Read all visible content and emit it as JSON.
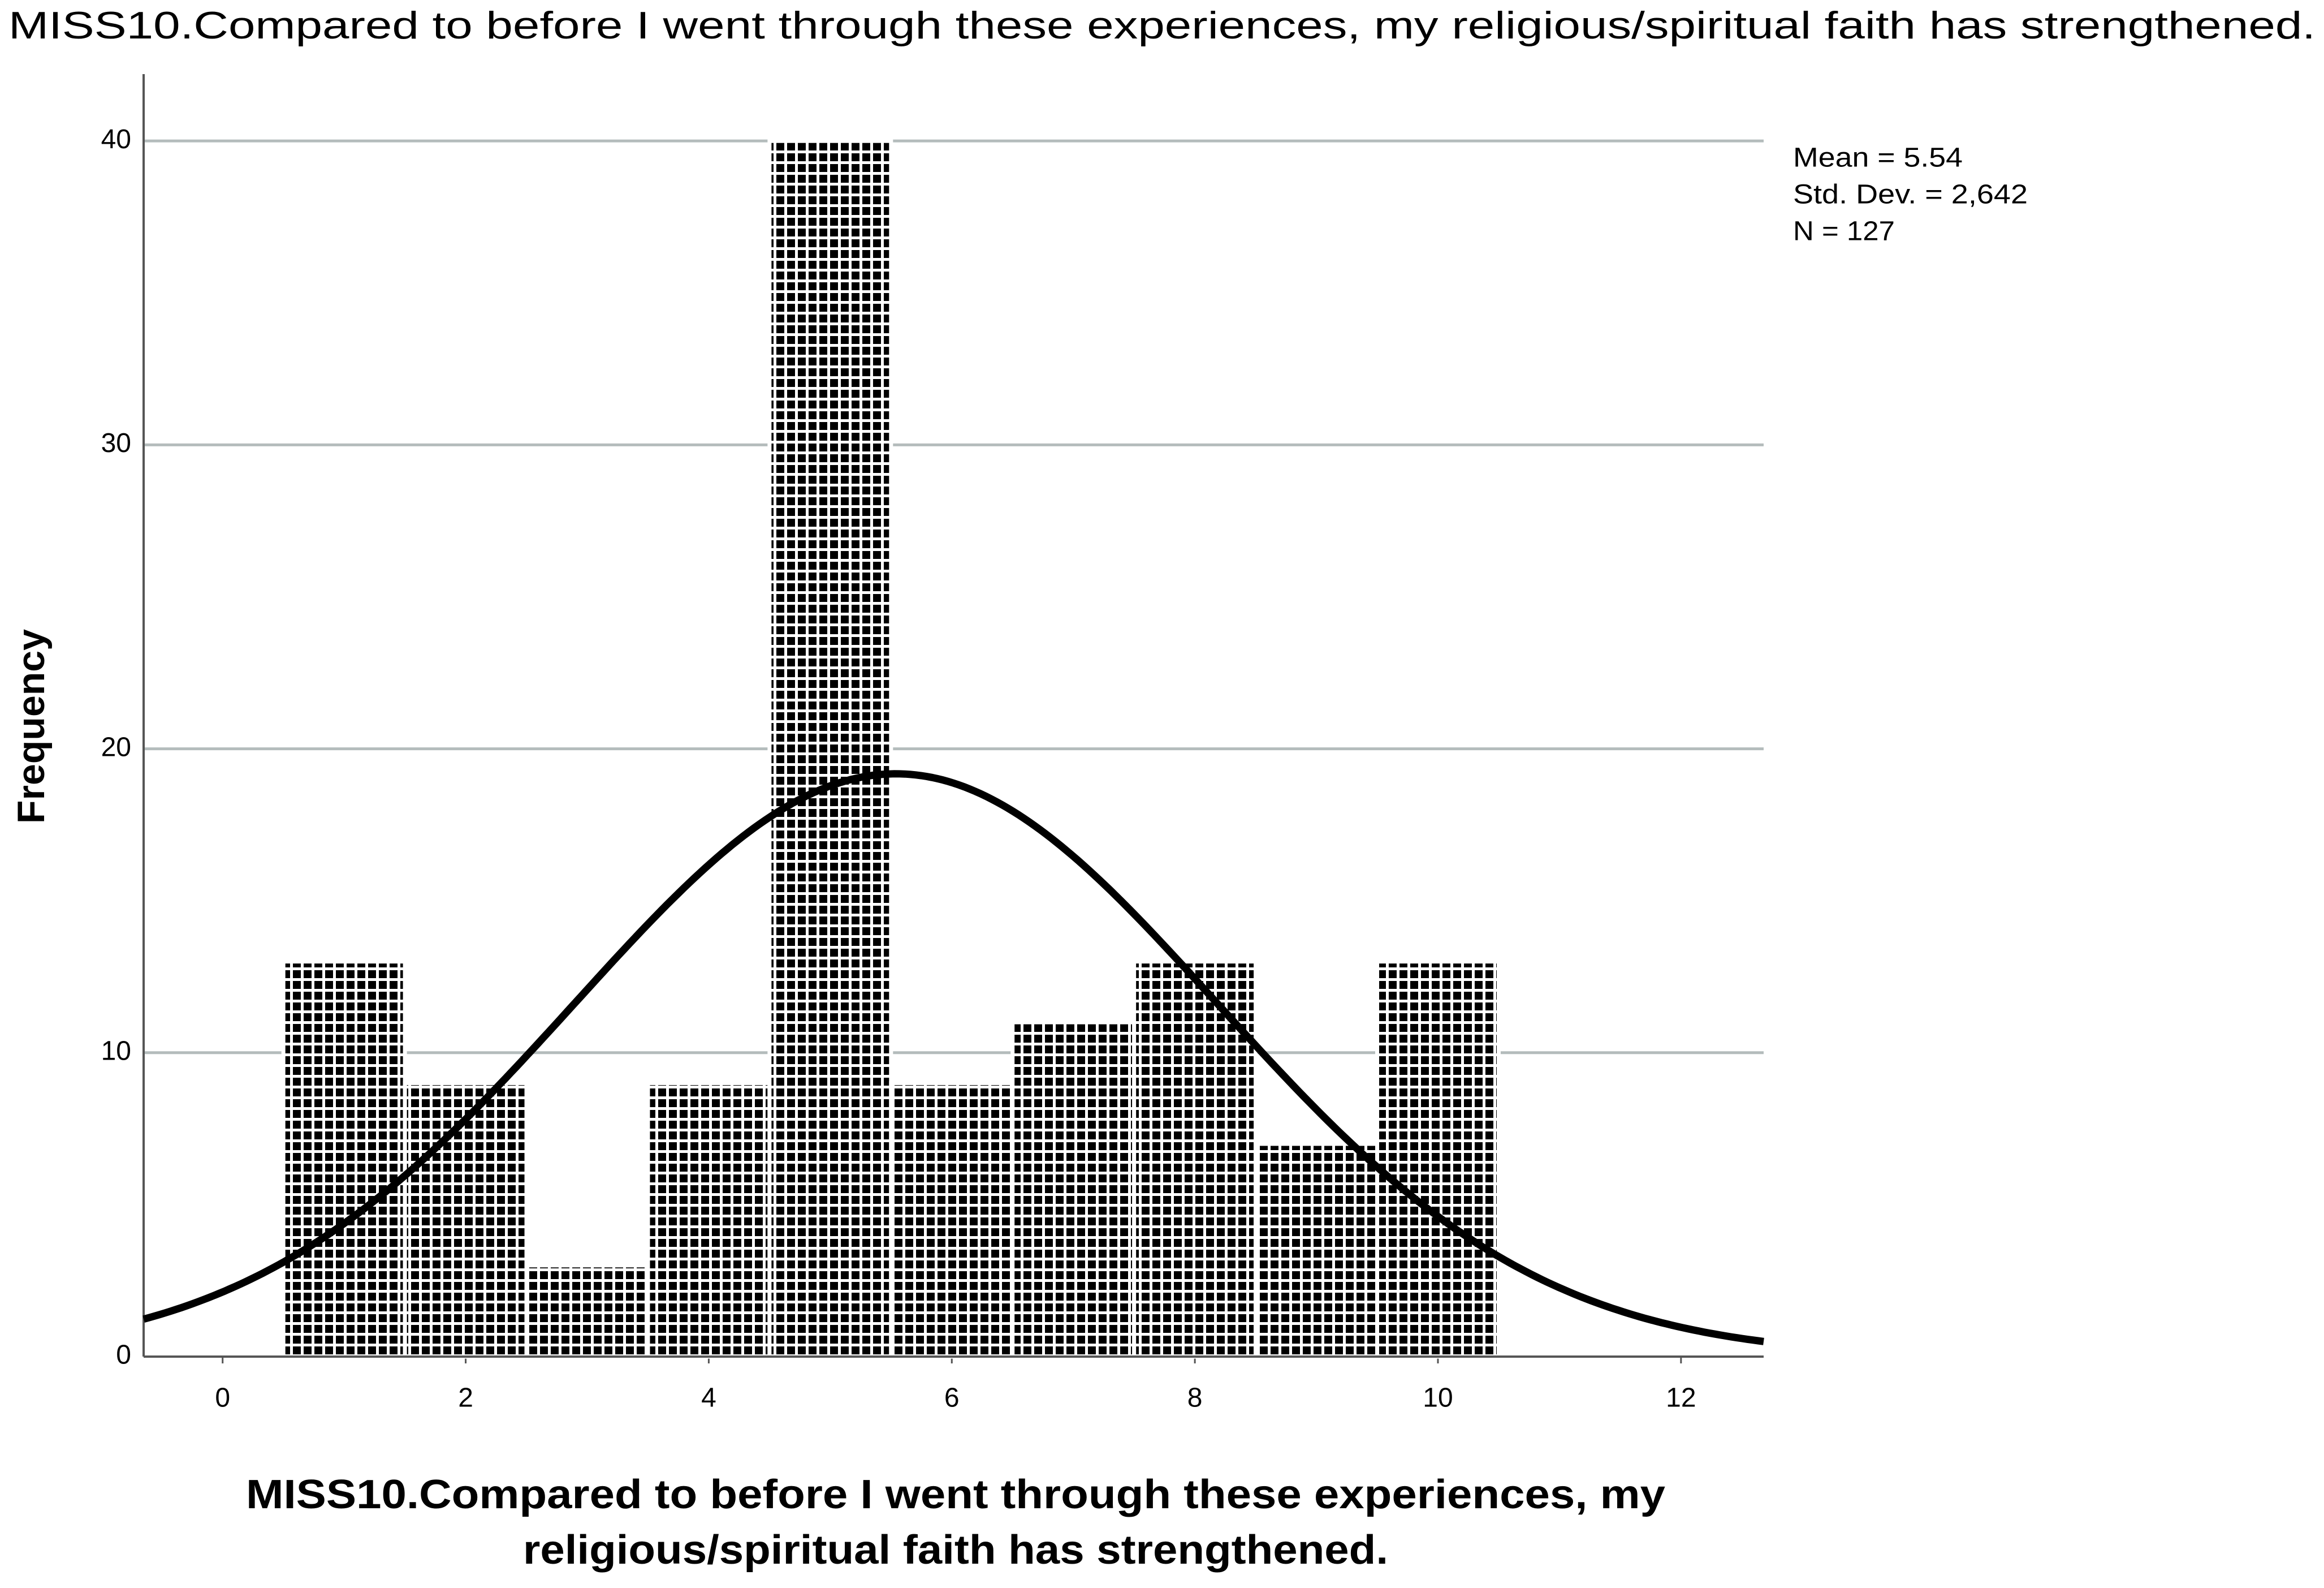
{
  "chart_data": {
    "type": "histogram",
    "title": "MISS10.Compared to before I went through these experiences, my religious/spiritual faith has strengthened.",
    "xlabel": [
      "MISS10.Compared to before I went through these experiences, my",
      "religious/spiritual faith has strengthened."
    ],
    "ylabel": "Frequency",
    "bins": [
      0.5,
      1.5,
      2.5,
      3.5,
      4.5,
      5.5,
      6.5,
      7.5,
      8.5,
      9.5,
      10.5
    ],
    "counts": [
      13,
      9,
      3,
      9,
      40,
      9,
      11,
      13,
      7,
      13
    ],
    "color": "#000000",
    "curve_color": "#000000",
    "xlim": [
      -0.65,
      12.68
    ],
    "xticks": [
      0,
      2,
      4,
      6,
      8,
      10,
      12
    ],
    "ylim": [
      0,
      42.2
    ],
    "yticks": [
      0,
      10,
      20,
      30,
      40
    ],
    "grid": true,
    "stats": [
      {
        "label": "Mean = 5.54",
        "value": 5.54
      },
      {
        "label": "Std. Dev. = 2,642",
        "value": 2.642
      },
      {
        "label": "N = 127",
        "value": 127
      }
    ]
  }
}
